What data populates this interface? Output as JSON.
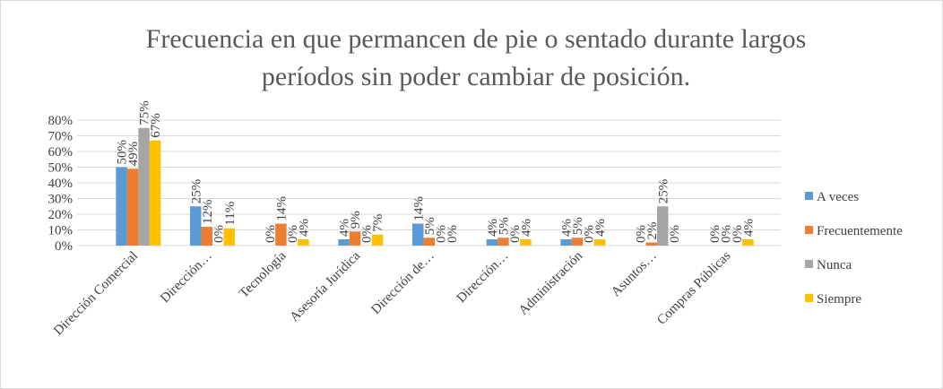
{
  "chart_data": {
    "type": "bar",
    "title": "Frecuencia en que permancen de pie o sentado durante largos períodos sin poder cambiar de posición.",
    "categories": [
      "Dirección Comercial",
      "Dirección…",
      "Tecnología",
      "Asesoría Jurídica",
      "Dirección de…",
      "Dirección…",
      "Administración",
      "Asuntos…",
      "Compras Públicas"
    ],
    "series": [
      {
        "name": "A veces",
        "color": "#5b9bd5",
        "values": [
          50,
          25,
          0,
          4,
          14,
          4,
          4,
          0,
          0
        ],
        "value_labels": [
          "50%",
          "25%",
          "0%",
          "4%",
          "14%",
          "4%",
          "4%",
          "0%",
          "0%"
        ]
      },
      {
        "name": "Frecuentemente",
        "color": "#ed7d31",
        "values": [
          49,
          12,
          14,
          9,
          5,
          5,
          5,
          2,
          0
        ],
        "value_labels": [
          "49%",
          "12%",
          "14%",
          "9%",
          "5%",
          "5%",
          "5%",
          "2%",
          "0%"
        ]
      },
      {
        "name": "Nunca",
        "color": "#a5a5a5",
        "values": [
          75,
          0,
          0,
          0,
          0,
          0,
          0,
          25,
          0
        ],
        "value_labels": [
          "75%",
          "0%",
          "0%",
          "0%",
          "0%",
          "0%",
          "0%",
          "25%",
          "0%"
        ]
      },
      {
        "name": "Siempre",
        "color": "#ffc000",
        "values": [
          67,
          11,
          4,
          7,
          0,
          4,
          4,
          0,
          4
        ],
        "value_labels": [
          "67%",
          "11%",
          "4%",
          "7%",
          "0%",
          "4%",
          "4%",
          "0%",
          "4%"
        ]
      }
    ],
    "ylim": [
      0,
      80
    ],
    "yticks": [
      {
        "value": 0,
        "label": "0%"
      },
      {
        "value": 10,
        "label": "10%"
      },
      {
        "value": 20,
        "label": "20%"
      },
      {
        "value": 30,
        "label": "30%"
      },
      {
        "value": 40,
        "label": "40%"
      },
      {
        "value": 50,
        "label": "50%"
      },
      {
        "value": 60,
        "label": "60%"
      },
      {
        "value": 70,
        "label": "70%"
      },
      {
        "value": 80,
        "label": "80%"
      }
    ],
    "grid": true,
    "legend": "right"
  }
}
